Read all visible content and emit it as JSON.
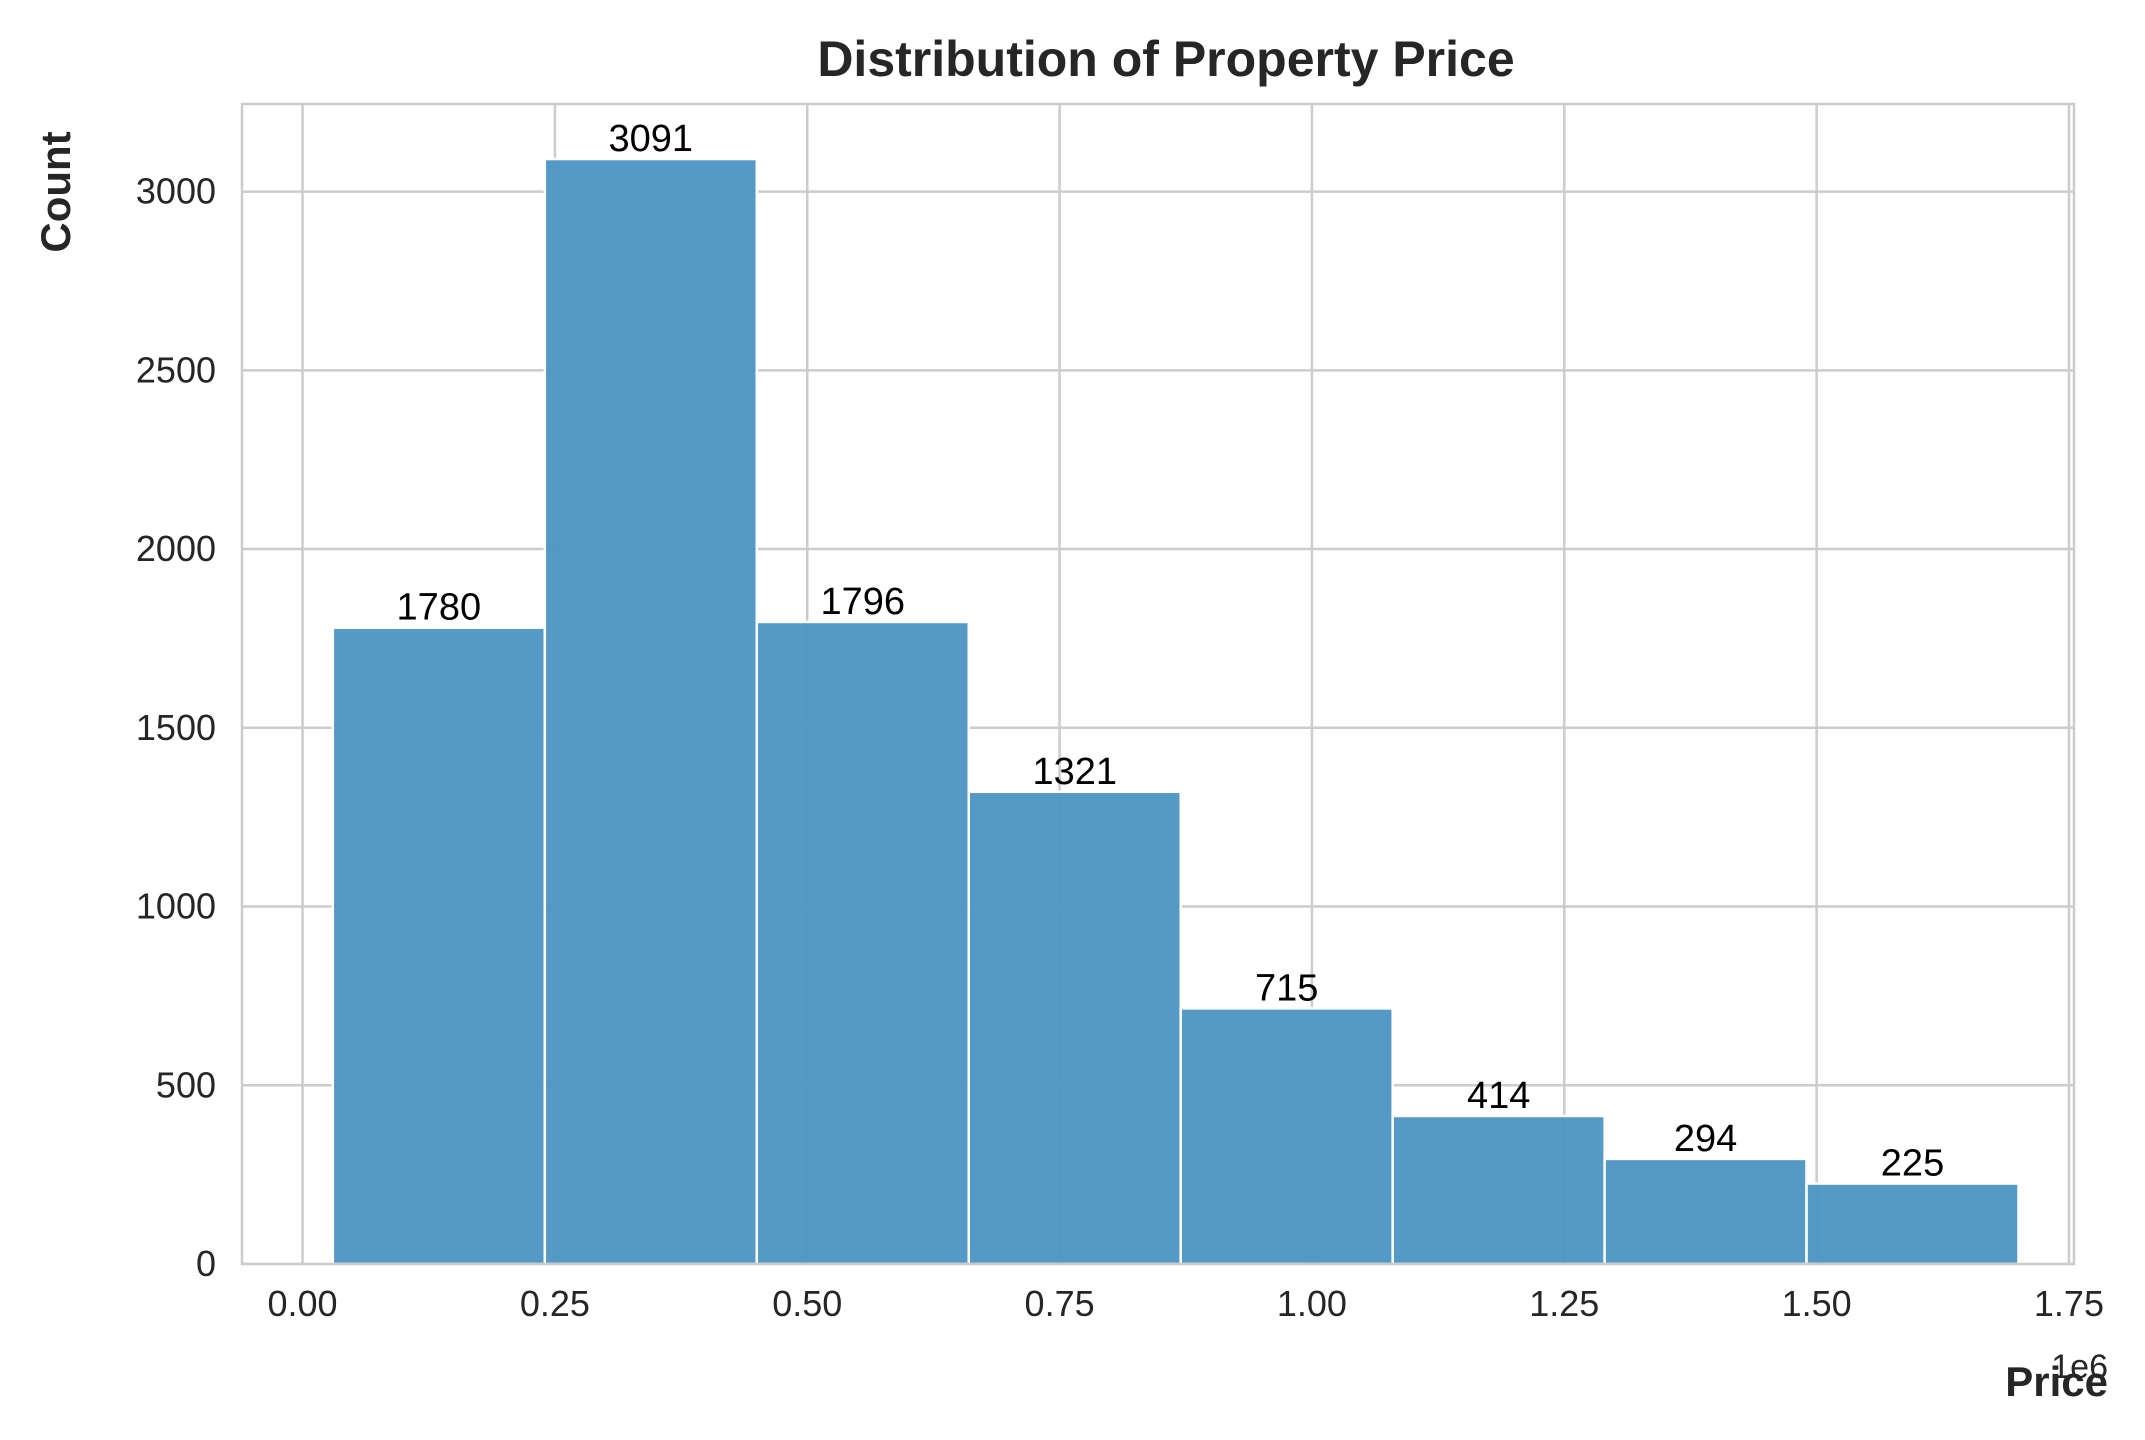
{
  "chart_data": {
    "type": "bar",
    "title": "Distribution of Property Price",
    "xlabel": "Price",
    "ylabel": "Count",
    "x_offset_text": "1e6",
    "xlim": [
      -0.06,
      1.755
    ],
    "ylim": [
      0,
      3245
    ],
    "x_ticks": [
      0.0,
      0.25,
      0.5,
      0.75,
      1.0,
      1.25,
      1.5,
      1.75
    ],
    "x_tick_labels": [
      "0.00",
      "0.25",
      "0.50",
      "0.75",
      "1.00",
      "1.25",
      "1.50",
      "1.75"
    ],
    "y_ticks": [
      0,
      500,
      1000,
      1500,
      2000,
      2500,
      3000
    ],
    "y_tick_labels": [
      "0",
      "500",
      "1000",
      "1500",
      "2000",
      "2500",
      "3000"
    ],
    "bins": [
      {
        "x0": 0.03,
        "x1": 0.24,
        "value": 1780
      },
      {
        "x0": 0.24,
        "x1": 0.45,
        "value": 3091
      },
      {
        "x0": 0.45,
        "x1": 0.66,
        "value": 1796
      },
      {
        "x0": 0.66,
        "x1": 0.87,
        "value": 1321
      },
      {
        "x0": 0.87,
        "x1": 1.08,
        "value": 715
      },
      {
        "x0": 1.08,
        "x1": 1.29,
        "value": 414
      },
      {
        "x0": 1.29,
        "x1": 1.49,
        "value": 294
      },
      {
        "x0": 1.49,
        "x1": 1.7,
        "value": 225
      }
    ],
    "grid": true,
    "colors": {
      "bar": "#4c93c3",
      "grid": "#cccccc",
      "spine": "#cccccc",
      "text": "#262626",
      "bar_label": "#000000"
    }
  }
}
